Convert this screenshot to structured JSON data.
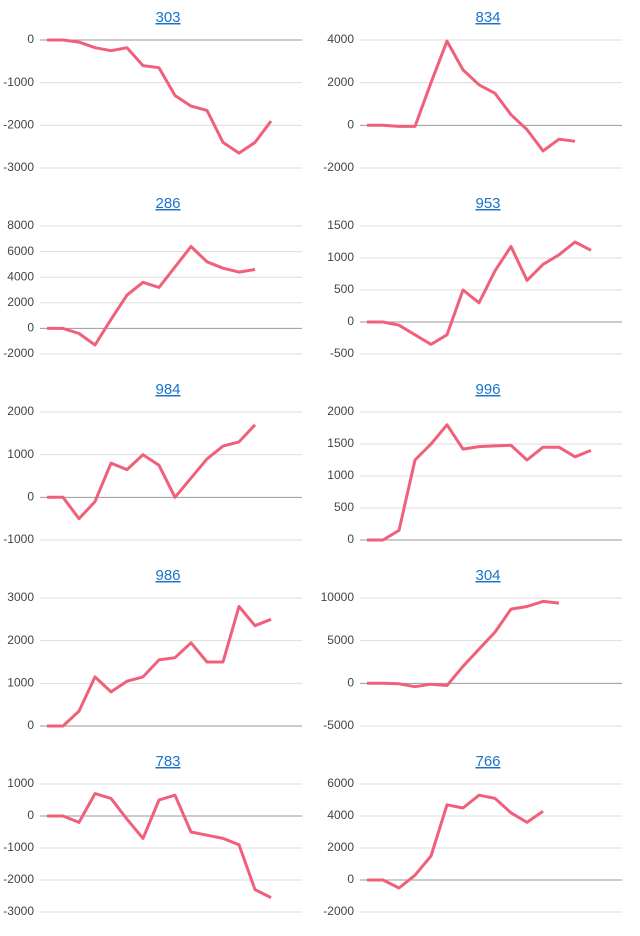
{
  "chart_data": [
    {
      "type": "line",
      "title": "303",
      "color": "#f0607a",
      "values": [
        0,
        0,
        -50,
        -180,
        -250,
        -180,
        -600,
        -650,
        -1300,
        -1550,
        -1650,
        -2400,
        -2650,
        -2400,
        -1900
      ],
      "ylim": [
        -3000,
        0
      ],
      "yticks": [
        -3000,
        -2000,
        -1000,
        0
      ],
      "grid": true
    },
    {
      "type": "line",
      "title": "834",
      "color": "#f0607a",
      "values": [
        0,
        0,
        -50,
        -50,
        2000,
        3950,
        2600,
        1900,
        1500,
        500,
        -200,
        -1200,
        -650,
        -750
      ],
      "ylim": [
        -2000,
        4000
      ],
      "yticks": [
        -2000,
        0,
        2000,
        4000
      ],
      "grid": true
    },
    {
      "type": "line",
      "title": "286",
      "color": "#f0607a",
      "values": [
        0,
        0,
        -400,
        -1300,
        700,
        2600,
        3600,
        3200,
        4800,
        6400,
        5200,
        4700,
        4400,
        4600
      ],
      "ylim": [
        -2000,
        8000
      ],
      "yticks": [
        -2000,
        0,
        2000,
        4000,
        6000,
        8000
      ],
      "grid": true
    },
    {
      "type": "line",
      "title": "953",
      "color": "#f0607a",
      "values": [
        0,
        0,
        -50,
        -200,
        -350,
        -200,
        500,
        300,
        800,
        1180,
        650,
        900,
        1050,
        1250,
        1120
      ],
      "ylim": [
        -500,
        1500
      ],
      "yticks": [
        -500,
        0,
        500,
        1000,
        1500
      ],
      "grid": true
    },
    {
      "type": "line",
      "title": "984",
      "color": "#f0607a",
      "values": [
        0,
        0,
        -500,
        -100,
        800,
        650,
        1000,
        750,
        0,
        450,
        900,
        1200,
        1300,
        1700
      ],
      "ylim": [
        -1000,
        2000
      ],
      "yticks": [
        -1000,
        0,
        1000,
        2000
      ],
      "grid": true
    },
    {
      "type": "line",
      "title": "996",
      "color": "#f0607a",
      "values": [
        0,
        0,
        150,
        1250,
        1500,
        1800,
        1420,
        1460,
        1470,
        1480,
        1250,
        1450,
        1450,
        1300,
        1400
      ],
      "ylim": [
        0,
        2000
      ],
      "yticks": [
        0,
        500,
        1000,
        1500,
        2000
      ],
      "grid": true
    },
    {
      "type": "line",
      "title": "986",
      "color": "#f0607a",
      "values": [
        0,
        0,
        350,
        1150,
        800,
        1050,
        1150,
        1550,
        1600,
        1950,
        1500,
        1500,
        2800,
        2350,
        2500
      ],
      "ylim": [
        0,
        3000
      ],
      "yticks": [
        0,
        1000,
        2000,
        3000
      ],
      "grid": true
    },
    {
      "type": "line",
      "title": "304",
      "color": "#f0607a",
      "values": [
        0,
        0,
        -50,
        -400,
        -100,
        -250,
        2000,
        4000,
        6000,
        8700,
        9000,
        9600,
        9400
      ],
      "ylim": [
        -5000,
        10000
      ],
      "yticks": [
        -5000,
        0,
        5000,
        10000
      ],
      "grid": true
    },
    {
      "type": "line",
      "title": "783",
      "color": "#f0607a",
      "values": [
        0,
        0,
        -200,
        700,
        550,
        -100,
        -700,
        500,
        650,
        -500,
        -600,
        -700,
        -900,
        -2300,
        -2550
      ],
      "ylim": [
        -3000,
        1000
      ],
      "yticks": [
        -3000,
        -2000,
        -1000,
        0,
        1000
      ],
      "grid": true
    },
    {
      "type": "line",
      "title": "766",
      "color": "#f0607a",
      "values": [
        0,
        0,
        -500,
        300,
        1500,
        4700,
        4500,
        5300,
        5100,
        4200,
        3600,
        4300
      ],
      "ylim": [
        -2000,
        6000
      ],
      "yticks": [
        -2000,
        0,
        2000,
        4000,
        6000
      ],
      "grid": true
    }
  ]
}
